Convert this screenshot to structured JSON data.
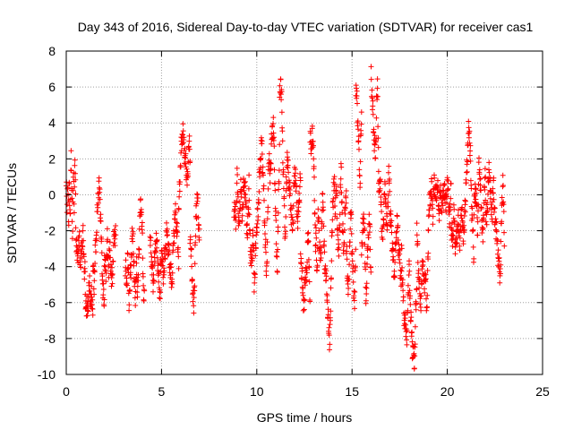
{
  "colors": {
    "background": "#ffffff",
    "axis": "#000000",
    "grid": "#a0a0a0",
    "series": "#ff0000"
  },
  "chart_data": {
    "type": "scatter",
    "title": "Day 343 of 2016, Sidereal Day-to-day VTEC variation (SDTVAR) for receiver cas1",
    "xlabel": "GPS time / hours",
    "ylabel": "SDTVAR / TECUs",
    "xlim": [
      0,
      25
    ],
    "ylim": [
      -10,
      8
    ],
    "xticks": [
      0,
      5,
      10,
      15,
      20,
      25
    ],
    "yticks": [
      -10,
      -8,
      -6,
      -4,
      -2,
      0,
      2,
      4,
      6,
      8
    ],
    "grid": true,
    "marker": "+",
    "series": [
      {
        "name": "SDTVAR",
        "color": "#ff0000",
        "segments": [
          {
            "t0": 0.0,
            "t1": 0.5,
            "y": [
              0.5,
              -1.0,
              1.2,
              -2.0,
              0.8,
              -1.5,
              1.8,
              0.2,
              -2.5,
              1.5,
              -0.5,
              2.0,
              -1.0
            ]
          },
          {
            "t0": 0.5,
            "t1": 1.0,
            "y": [
              -2.0,
              -3.5,
              -3.0,
              -2.5,
              -4.0,
              -3.0,
              -2.2,
              -3.8,
              -4.5
            ]
          },
          {
            "t0": 1.0,
            "t1": 1.4,
            "y": [
              -5.8,
              -6.2,
              -6.5,
              -5.5,
              -5.0,
              -6.0,
              -5.7,
              -6.3
            ]
          },
          {
            "t0": 1.4,
            "t1": 2.0,
            "y": [
              -4.0,
              -5.0,
              -3.0,
              -2.0,
              0.0,
              0.5,
              -1.0,
              -3.5,
              -5.5,
              -6.0
            ]
          },
          {
            "t0": 2.0,
            "t1": 2.6,
            "y": [
              -3.5,
              -4.5,
              -2.5,
              -4.0,
              -3.0,
              -5.0,
              -3.8,
              -2.0,
              -2.5
            ]
          },
          {
            "t0": 3.1,
            "t1": 3.7,
            "y": [
              -4.0,
              -5.0,
              -3.5,
              -6.0,
              -4.5,
              -3.0,
              -2.0,
              -4.8,
              -5.5,
              -4.0
            ]
          },
          {
            "t0": 3.7,
            "t1": 4.1,
            "y": [
              -4.5,
              -5.5,
              -3.0,
              -1.0,
              -0.5,
              -2.0,
              -5.0,
              -6.0
            ]
          },
          {
            "t0": 4.4,
            "t1": 5.0,
            "y": [
              -2.5,
              -3.5,
              -5.0,
              -4.0,
              -2.5,
              -3.0,
              -4.8,
              -5.5,
              -3.2
            ]
          },
          {
            "t0": 5.0,
            "t1": 5.9,
            "y": [
              -3.0,
              -4.5,
              -3.5,
              -2.0,
              -3.0,
              -4.0,
              -5.0,
              -2.5,
              -1.0,
              -2.0,
              -3.5
            ]
          },
          {
            "t0": 5.9,
            "t1": 6.5,
            "y": [
              -1.0,
              1.0,
              2.5,
              3.5,
              3.0,
              2.0,
              1.5,
              0.5,
              3.2,
              1.8
            ]
          },
          {
            "t0": 6.5,
            "t1": 7.0,
            "y": [
              -2.0,
              -3.5,
              -5.0,
              -6.5,
              -4.0,
              -1.0,
              0.0,
              -1.5,
              -2.5
            ]
          },
          {
            "t0": 8.8,
            "t1": 9.6,
            "y": [
              -0.5,
              -1.5,
              1.0,
              -2.0,
              0.5,
              -1.0,
              0.8,
              -0.2,
              -2.5,
              1.2
            ]
          },
          {
            "t0": 9.6,
            "t1": 10.0,
            "y": [
              -1.0,
              -3.0,
              -4.0,
              -2.0,
              -5.0,
              -3.5,
              -1.5
            ]
          },
          {
            "t0": 10.0,
            "t1": 10.7,
            "y": [
              -2.0,
              -1.0,
              0.5,
              2.0,
              3.0,
              1.5,
              -0.5,
              -2.5,
              -4.5,
              -1.5,
              2.5,
              1.0
            ]
          },
          {
            "t0": 10.7,
            "t1": 11.2,
            "y": [
              1.0,
              2.5,
              3.5,
              4.0,
              2.0,
              -0.5,
              -3.0,
              -4.0,
              0.0,
              3.0
            ]
          },
          {
            "t0": 11.2,
            "t1": 11.6,
            "y": [
              5.0,
              6.5,
              5.5,
              3.0,
              1.0,
              -1.0,
              -2.5,
              0.5,
              2.0
            ]
          },
          {
            "t0": 11.6,
            "t1": 12.3,
            "y": [
              2.0,
              1.0,
              0.0,
              -1.0,
              -2.0,
              0.5,
              1.5,
              -0.5,
              -1.5,
              0.0,
              1.0
            ]
          },
          {
            "t0": 12.3,
            "t1": 12.8,
            "y": [
              -3.0,
              -4.5,
              -5.5,
              -6.5,
              -4.0,
              -5.0,
              -2.0,
              -3.5,
              -6.0
            ]
          },
          {
            "t0": 12.8,
            "t1": 13.1,
            "y": [
              3.0,
              2.8,
              3.2,
              2.6,
              -1.0,
              -3.0
            ]
          },
          {
            "t0": 13.1,
            "t1": 13.6,
            "y": [
              -2.0,
              -4.5,
              -1.0,
              -2.5,
              -4.0,
              -1.5,
              0.0,
              -3.0,
              -5.0
            ]
          },
          {
            "t0": 13.6,
            "t1": 14.1,
            "y": [
              -4.0,
              -5.0,
              -6.0,
              -7.5,
              -8.0,
              -6.5,
              -2.5,
              -1.0,
              1.0,
              0.0
            ]
          },
          {
            "t0": 14.1,
            "t1": 14.7,
            "y": [
              -1.0,
              0.5,
              -2.0,
              -3.5,
              -0.5,
              1.5,
              -2.0,
              -3.0,
              -1.0,
              0.5
            ]
          },
          {
            "t0": 14.7,
            "t1": 15.2,
            "y": [
              -3.0,
              -4.5,
              -5.5,
              -2.0,
              -1.0,
              -3.5,
              -5.0,
              -6.0,
              -2.5
            ]
          },
          {
            "t0": 15.2,
            "t1": 15.5,
            "y": [
              6.0,
              5.5,
              4.5,
              3.5,
              2.0,
              0.5,
              3.0,
              4.2
            ]
          },
          {
            "t0": 15.5,
            "t1": 16.0,
            "y": [
              -3.0,
              -2.0,
              -1.0,
              -4.0,
              -6.0,
              -3.0,
              -2.0,
              -1.5,
              -5.5
            ]
          },
          {
            "t0": 16.0,
            "t1": 16.4,
            "y": [
              6.5,
              5.5,
              4.0,
              3.0,
              2.0,
              5.0,
              6.0,
              1.0
            ]
          },
          {
            "t0": 16.4,
            "t1": 17.0,
            "y": [
              0.0,
              1.0,
              -1.5,
              -2.5,
              0.5,
              -0.5,
              -2.0,
              1.5,
              -1.0
            ]
          },
          {
            "t0": 17.0,
            "t1": 17.6,
            "y": [
              -1.0,
              -2.0,
              -3.5,
              -4.5,
              -2.5,
              -1.5,
              -3.0,
              -4.0,
              -5.0
            ]
          },
          {
            "t0": 17.6,
            "t1": 18.0,
            "y": [
              -3.0,
              -5.0,
              -6.5,
              -7.0,
              -7.5,
              -7.8,
              -5.5,
              -4.0
            ]
          },
          {
            "t0": 18.0,
            "t1": 18.4,
            "y": [
              -4.5,
              -6.0,
              -7.5,
              -8.5,
              -9.0,
              -9.2,
              -6.5,
              -5.0
            ]
          },
          {
            "t0": 18.4,
            "t1": 19.0,
            "y": [
              -2.0,
              -4.0,
              -5.5,
              -6.0,
              -3.5,
              -5.0,
              -4.5,
              -6.5,
              -3.0
            ]
          },
          {
            "t0": 19.0,
            "t1": 19.8,
            "y": [
              -1.5,
              -0.5,
              0.5,
              -1.0,
              0.8,
              -0.2,
              0.6,
              -1.0,
              0.2,
              -0.8,
              0.5
            ]
          },
          {
            "t0": 19.8,
            "t1": 20.2,
            "y": [
              -0.5,
              0.5,
              -1.0,
              1.0,
              -0.5,
              -1.5,
              0.8
            ]
          },
          {
            "t0": 20.2,
            "t1": 20.9,
            "y": [
              -2.0,
              -2.5,
              -1.0,
              -3.0,
              -2.0,
              -1.5,
              -2.8,
              -0.5,
              -2.2,
              -1.8
            ]
          },
          {
            "t0": 20.9,
            "t1": 21.4,
            "y": [
              -1.0,
              0.0,
              1.5,
              3.0,
              3.8,
              2.0,
              -0.5,
              -2.0,
              -3.5
            ]
          },
          {
            "t0": 21.4,
            "t1": 22.0,
            "y": [
              -1.0,
              0.5,
              -0.5,
              -2.0,
              2.0,
              0.5,
              -1.0,
              -2.5,
              0.0,
              1.0
            ]
          },
          {
            "t0": 22.0,
            "t1": 22.5,
            "y": [
              -0.5,
              -1.5,
              0.5,
              1.5,
              -0.5,
              -1.0,
              0.8,
              -2.0
            ]
          },
          {
            "t0": 22.5,
            "t1": 23.0,
            "y": [
              -1.0,
              -2.0,
              -3.0,
              -4.0,
              -4.4,
              -0.5,
              0.5,
              -2.5
            ]
          }
        ]
      }
    ]
  }
}
